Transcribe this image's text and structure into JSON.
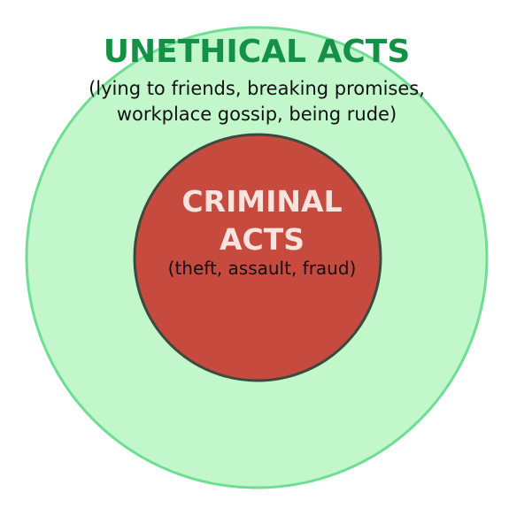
{
  "outer": {
    "title": "UNETHICAL ACTS",
    "examples_line1": "(lying to friends, breaking promises,",
    "examples_line2": "workplace gossip, being rude)",
    "fill_color": "#c1f7cb",
    "stroke_color": "#6fde93",
    "title_color": "#149146"
  },
  "inner": {
    "title_line1": "CRIMINAL",
    "title_line2": "ACTS",
    "examples": "(theft, assault, fraud)",
    "fill_color": "#c64a3d",
    "stroke_color": "#3a4a3c",
    "title_color": "#f8e3de"
  },
  "text_color": "#111111"
}
